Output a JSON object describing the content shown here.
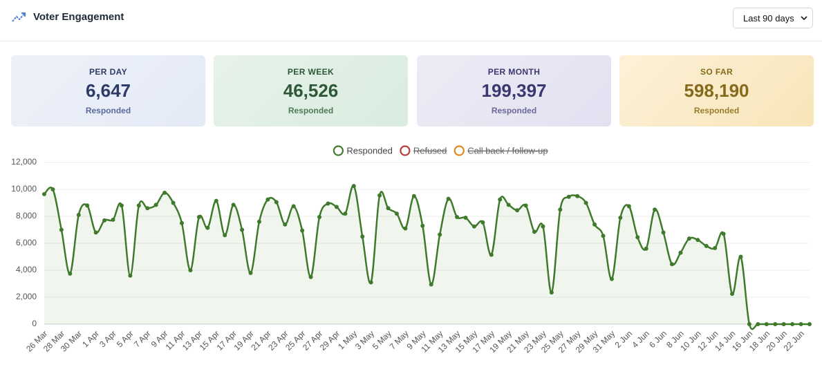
{
  "header": {
    "title": "Voter Engagement",
    "range_select": "Last 90 days"
  },
  "stats": [
    {
      "label": "PER DAY",
      "value": "6,647",
      "caption": "Responded"
    },
    {
      "label": "PER WEEK",
      "value": "46,526",
      "caption": "Responded"
    },
    {
      "label": "PER MONTH",
      "value": "199,397",
      "caption": "Responded"
    },
    {
      "label": "SO FAR",
      "value": "598,190",
      "caption": "Responded"
    }
  ],
  "chart_data": {
    "type": "line",
    "categories": [
      "26 Mar",
      null,
      "28 Mar",
      null,
      "30 Mar",
      null,
      "1 Apr",
      null,
      "3 Apr",
      null,
      "5 Apr",
      null,
      "7 Apr",
      null,
      "9 Apr",
      null,
      "11 Apr",
      null,
      "13 Apr",
      null,
      "15 Apr",
      null,
      "17 Apr",
      null,
      "19 Apr",
      null,
      "21 Apr",
      null,
      "23 Apr",
      null,
      "25 Apr",
      null,
      "27 Apr",
      null,
      "29 Apr",
      null,
      "1 May",
      null,
      "3 May",
      null,
      "5 May",
      null,
      "7 May",
      null,
      "9 May",
      null,
      "11 May",
      null,
      "13 May",
      null,
      "15 May",
      null,
      "17 May",
      null,
      "19 May",
      null,
      "21 May",
      null,
      "23 May",
      null,
      "25 May",
      null,
      "27 May",
      null,
      "29 May",
      null,
      "31 May",
      null,
      "2 Jun",
      null,
      "4 Jun",
      null,
      "6 Jun",
      null,
      "8 Jun",
      null,
      "10 Jun",
      null,
      "12 Jun",
      null,
      "14 Jun",
      null,
      "16 Jun",
      null,
      "18 Jun",
      null,
      "20 Jun",
      null,
      "22 Jun",
      null
    ],
    "series": [
      {
        "name": "Responded",
        "color": "#3f7a2c",
        "hidden": false,
        "values": [
          9650,
          10000,
          7000,
          3750,
          8100,
          8800,
          6800,
          7700,
          7750,
          8800,
          3600,
          8800,
          8600,
          8850,
          9750,
          9000,
          7500,
          4000,
          7950,
          7150,
          9150,
          6600,
          8850,
          7000,
          3800,
          7600,
          9250,
          9050,
          7400,
          8750,
          6950,
          3500,
          7950,
          8950,
          8700,
          8200,
          10250,
          6500,
          3100,
          9550,
          8600,
          8200,
          7100,
          9500,
          7300,
          2950,
          6650,
          9300,
          7950,
          7900,
          7250,
          7550,
          5150,
          9250,
          8850,
          8450,
          8800,
          6850,
          7250,
          2350,
          8500,
          9450,
          9500,
          9000,
          7400,
          6550,
          3350,
          7900,
          8750,
          6450,
          5600,
          8500,
          6800,
          4450,
          5300,
          6350,
          6250,
          5800,
          5650,
          6700,
          2250,
          5000,
          0,
          0,
          0,
          0,
          0,
          0,
          0,
          0
        ]
      },
      {
        "name": "Refused",
        "color": "#b83a3a",
        "hidden": true
      },
      {
        "name": "Call back / follow-up",
        "color": "#e08a1e",
        "hidden": true
      }
    ],
    "ylim": [
      0,
      12000
    ],
    "yticks": [
      0,
      {
        "value": 2000,
        "label": "2,000"
      },
      {
        "value": 4000,
        "label": "4,000"
      },
      {
        "value": 6000,
        "label": "6,000"
      },
      {
        "value": 8000,
        "label": "8,000"
      },
      {
        "value": 10000,
        "label": "10,000"
      },
      {
        "value": 12000,
        "label": "12,000"
      }
    ],
    "grid": true
  }
}
